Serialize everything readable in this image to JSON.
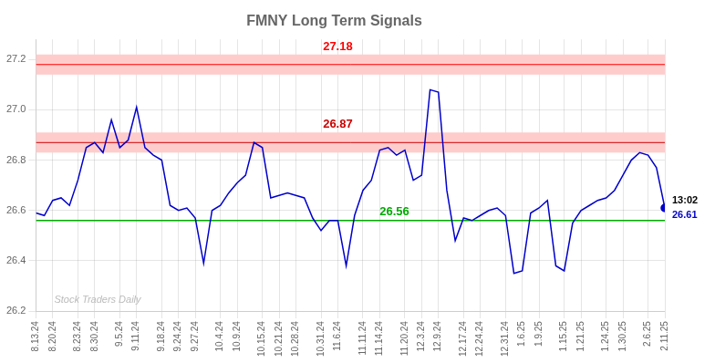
{
  "chart_data": {
    "type": "line",
    "title": "FMNY Long Term Signals",
    "categories": [
      "8.13.24",
      null,
      "8.20.24",
      null,
      null,
      "8.23.24",
      null,
      "8.30.24",
      null,
      null,
      "9.5.24",
      null,
      "9.11.24",
      null,
      null,
      "9.18.24",
      null,
      "9.24.24",
      null,
      "9.27.24",
      null,
      null,
      "10.4.24",
      null,
      "10.9.24",
      null,
      null,
      "10.15.24",
      null,
      "10.21.24",
      null,
      "10.28.24",
      null,
      null,
      "10.31.24",
      null,
      "11.6.24",
      null,
      null,
      "11.11.24",
      null,
      "11.14.24",
      null,
      null,
      "11.20.24",
      null,
      "12.3.24",
      null,
      "12.9.24",
      null,
      null,
      "12.17.24",
      null,
      "12.24.24",
      null,
      null,
      "12.31.24",
      null,
      "1.6.25",
      null,
      "1.9.25",
      null,
      null,
      "1.15.25",
      null,
      "1.21.25",
      null,
      null,
      "1.24.25",
      null,
      "1.30.25",
      null,
      null,
      "2.6.25",
      null,
      "2.11.25"
    ],
    "values": [
      26.59,
      26.58,
      26.64,
      26.65,
      26.62,
      26.72,
      26.85,
      26.87,
      26.83,
      26.96,
      26.85,
      26.88,
      27.01,
      26.85,
      26.82,
      26.8,
      26.62,
      26.6,
      26.61,
      26.57,
      26.39,
      26.6,
      26.62,
      26.67,
      26.71,
      26.74,
      26.87,
      26.85,
      26.65,
      26.66,
      26.67,
      26.66,
      26.65,
      26.57,
      26.52,
      26.56,
      26.56,
      26.38,
      26.58,
      26.68,
      26.72,
      26.84,
      26.85,
      26.82,
      26.84,
      26.72,
      26.74,
      27.08,
      27.07,
      26.68,
      26.48,
      26.57,
      26.56,
      26.58,
      26.6,
      26.61,
      26.58,
      26.35,
      26.36,
      26.59,
      26.61,
      26.64,
      26.38,
      26.36,
      26.55,
      26.6,
      26.62,
      26.64,
      26.65,
      26.68,
      26.74,
      26.8,
      26.83,
      26.82,
      26.77,
      26.61
    ],
    "color": "#0000cc",
    "bands": [
      {
        "from": 27.14,
        "to": 27.22,
        "color": "#ffcccc"
      },
      {
        "from": 26.83,
        "to": 26.91,
        "color": "#ffcccc"
      }
    ],
    "hlines": [
      {
        "value": 27.18,
        "color": "#ff0000"
      },
      {
        "value": 26.87,
        "color": "#cc0000"
      },
      {
        "value": 26.56,
        "color": "#00aa00"
      }
    ],
    "current": {
      "label": "13:02",
      "value": 26.61
    },
    "watermark": "Stock Traders Daily",
    "ylim": [
      26.2,
      27.28
    ],
    "yticks": [
      26.2,
      26.4,
      26.6,
      26.8,
      {
        "value": 27.0,
        "label": "27.0"
      },
      27.2
    ],
    "grid": true
  }
}
